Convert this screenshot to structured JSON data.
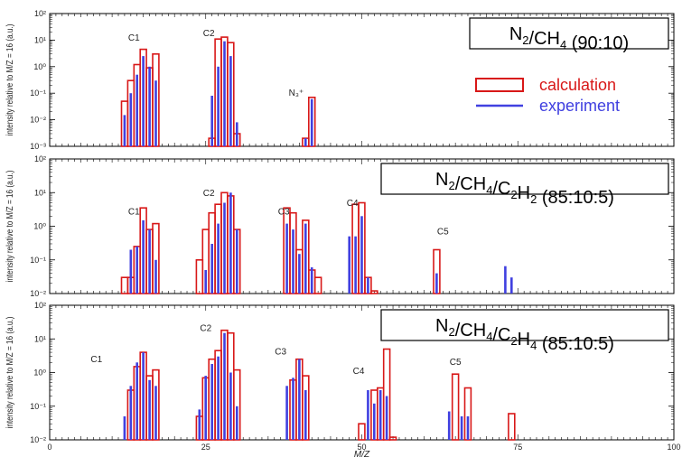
{
  "chart_data": [
    {
      "type": "bar",
      "title": "N₂/CH₄ (90:10)",
      "title_parts": [
        [
          "N",
          ""
        ],
        [
          "2",
          "sub"
        ],
        [
          "/CH",
          ""
        ],
        [
          "4",
          "sub"
        ],
        [
          " (90:10)",
          ""
        ]
      ],
      "ylabel": "intensity relative to M/Z = 16 (a.u.)",
      "yscale": "log",
      "ylim": [
        0.001,
        100
      ],
      "yticks": [
        "10⁻³",
        "10⁻²",
        "10⁻¹",
        "10⁰",
        "10¹",
        "10²"
      ],
      "xlim": [
        0,
        100
      ],
      "group_labels": [
        {
          "text": "C1",
          "x": 13.5,
          "y": 8
        },
        {
          "text": "C2",
          "x": 25.5,
          "y": 12
        },
        {
          "text": "N₃⁺",
          "x": 39.5,
          "y": 0.07
        }
      ],
      "series": [
        {
          "name": "calculation",
          "color": "#d81818",
          "x": [
            12,
            13,
            14,
            15,
            16,
            17,
            26,
            27,
            28,
            29,
            30,
            41,
            42
          ],
          "values": [
            0.05,
            0.3,
            1.2,
            4.5,
            0.9,
            3.0,
            0.002,
            11,
            13,
            8,
            0.003,
            0.002,
            0.07
          ]
        },
        {
          "name": "experiment",
          "color": "#4040e0",
          "x": [
            12,
            13,
            14,
            15,
            16,
            17,
            26,
            27,
            28,
            29,
            30,
            41,
            42
          ],
          "values": [
            0.015,
            0.1,
            0.5,
            2.5,
            1.0,
            0.3,
            0.08,
            1.0,
            9,
            2.5,
            0.008,
            0.002,
            0.06
          ]
        }
      ],
      "legend": {
        "placement": "right",
        "labels": [
          "calculation",
          "experiment"
        ]
      }
    },
    {
      "type": "bar",
      "title": "N₂/CH₄/C₂H₂ (85:10:5)",
      "title_parts": [
        [
          "N",
          ""
        ],
        [
          "2",
          "sub"
        ],
        [
          "/CH",
          ""
        ],
        [
          "4",
          "sub"
        ],
        [
          "/C",
          ""
        ],
        [
          "2",
          "sub"
        ],
        [
          "H",
          ""
        ],
        [
          "2",
          "sub"
        ],
        [
          " (85:10:5)",
          ""
        ]
      ],
      "ylabel": "intensity relative to M/Z = 16 (a.u.)",
      "yscale": "log",
      "ylim": [
        0.01,
        100
      ],
      "yticks": [
        "10⁻²",
        "10⁻¹",
        "10⁰",
        "10¹",
        "10²"
      ],
      "xlim": [
        0,
        100
      ],
      "group_labels": [
        {
          "text": "C1",
          "x": 13.5,
          "y": 2
        },
        {
          "text": "C2",
          "x": 25.5,
          "y": 7
        },
        {
          "text": "C3",
          "x": 37.5,
          "y": 2
        },
        {
          "text": "C4",
          "x": 48.5,
          "y": 3.5
        },
        {
          "text": "C5",
          "x": 63,
          "y": 0.5
        }
      ],
      "series": [
        {
          "name": "calculation",
          "color": "#d81818",
          "x": [
            12,
            13,
            14,
            15,
            16,
            17,
            24,
            25,
            26,
            27,
            28,
            29,
            30,
            36,
            37,
            38,
            39,
            40,
            41,
            42,
            43,
            48,
            49,
            50,
            51,
            52,
            53,
            62,
            74
          ],
          "values": [
            0.03,
            0.03,
            0.25,
            3.5,
            0.8,
            1.2,
            0.1,
            0.8,
            2.5,
            4.5,
            10,
            8,
            0.8,
            0.01,
            0.01,
            3.5,
            2.5,
            0.2,
            1.5,
            0.05,
            0.03,
            0.01,
            4.5,
            5,
            0.03,
            0.012,
            0.01,
            0.2,
            0.01
          ]
        },
        {
          "name": "experiment",
          "color": "#4040e0",
          "x": [
            13,
            14,
            15,
            16,
            17,
            25,
            26,
            27,
            28,
            29,
            30,
            36,
            37,
            38,
            39,
            40,
            41,
            42,
            48,
            49,
            50,
            51,
            52,
            62,
            73,
            74
          ],
          "values": [
            0.2,
            0.25,
            1.5,
            0.8,
            0.1,
            0.05,
            0.3,
            1.2,
            5,
            10,
            0.8,
            0.01,
            0.01,
            1.2,
            0.8,
            0.15,
            1.2,
            0.06,
            0.5,
            0.5,
            2,
            0.03,
            0.01,
            0.04,
            0.065,
            0.03
          ]
        }
      ],
      "legend": {
        "placement": "none",
        "labels": []
      }
    },
    {
      "type": "bar",
      "title": "N₂/CH₄/C₂H₄ (85:10:5)",
      "title_parts": [
        [
          "N",
          ""
        ],
        [
          "2",
          "sub"
        ],
        [
          "/CH",
          ""
        ],
        [
          "4",
          "sub"
        ],
        [
          "/C",
          ""
        ],
        [
          "2",
          "sub"
        ],
        [
          "H",
          ""
        ],
        [
          "4",
          "sub"
        ],
        [
          " (85:10:5)",
          ""
        ]
      ],
      "ylabel": "intensity relative to M/Z = 16 (a.u.)",
      "xlabel": "M/Z",
      "yscale": "log",
      "ylim": [
        0.01,
        100
      ],
      "yticks": [
        "10⁻²",
        "10⁻¹",
        "10⁰",
        "10¹",
        "10²"
      ],
      "xticks": [
        "0",
        "25",
        "50",
        "75",
        "100"
      ],
      "xlim": [
        0,
        100
      ],
      "group_labels": [
        {
          "text": "C1",
          "x": 7.5,
          "y": 1.8
        },
        {
          "text": "C2",
          "x": 25,
          "y": 15
        },
        {
          "text": "C3",
          "x": 37,
          "y": 3
        },
        {
          "text": "C4",
          "x": 49.5,
          "y": 0.8
        },
        {
          "text": "C5",
          "x": 65,
          "y": 1.5
        }
      ],
      "series": [
        {
          "name": "calculation",
          "color": "#d81818",
          "x": [
            12,
            13,
            14,
            15,
            16,
            17,
            24,
            25,
            26,
            27,
            28,
            29,
            30,
            38,
            39,
            40,
            41,
            50,
            51,
            52,
            53,
            54,
            55,
            64,
            65,
            66,
            67,
            74
          ],
          "values": [
            0.01,
            0.3,
            1.5,
            4,
            0.8,
            1.2,
            0.05,
            0.7,
            2.5,
            4.5,
            18,
            15,
            1.2,
            0.01,
            0.6,
            2.5,
            0.8,
            0.03,
            0.01,
            0.3,
            0.35,
            5,
            0.012,
            0.01,
            0.9,
            0.01,
            0.35,
            0.06
          ]
        },
        {
          "name": "experiment",
          "color": "#4040e0",
          "x": [
            12,
            13,
            14,
            15,
            16,
            17,
            24,
            25,
            26,
            27,
            28,
            29,
            30,
            38,
            39,
            40,
            41,
            51,
            52,
            53,
            54,
            64,
            66,
            67
          ],
          "values": [
            0.05,
            0.4,
            2,
            4,
            0.6,
            0.4,
            0.08,
            0.8,
            1.8,
            3,
            15,
            1,
            0.1,
            0.4,
            0.7,
            2.5,
            0.3,
            0.3,
            0.12,
            0.3,
            0.2,
            0.07,
            0.05,
            0.05
          ]
        }
      ],
      "legend": {
        "placement": "none",
        "labels": []
      }
    }
  ]
}
